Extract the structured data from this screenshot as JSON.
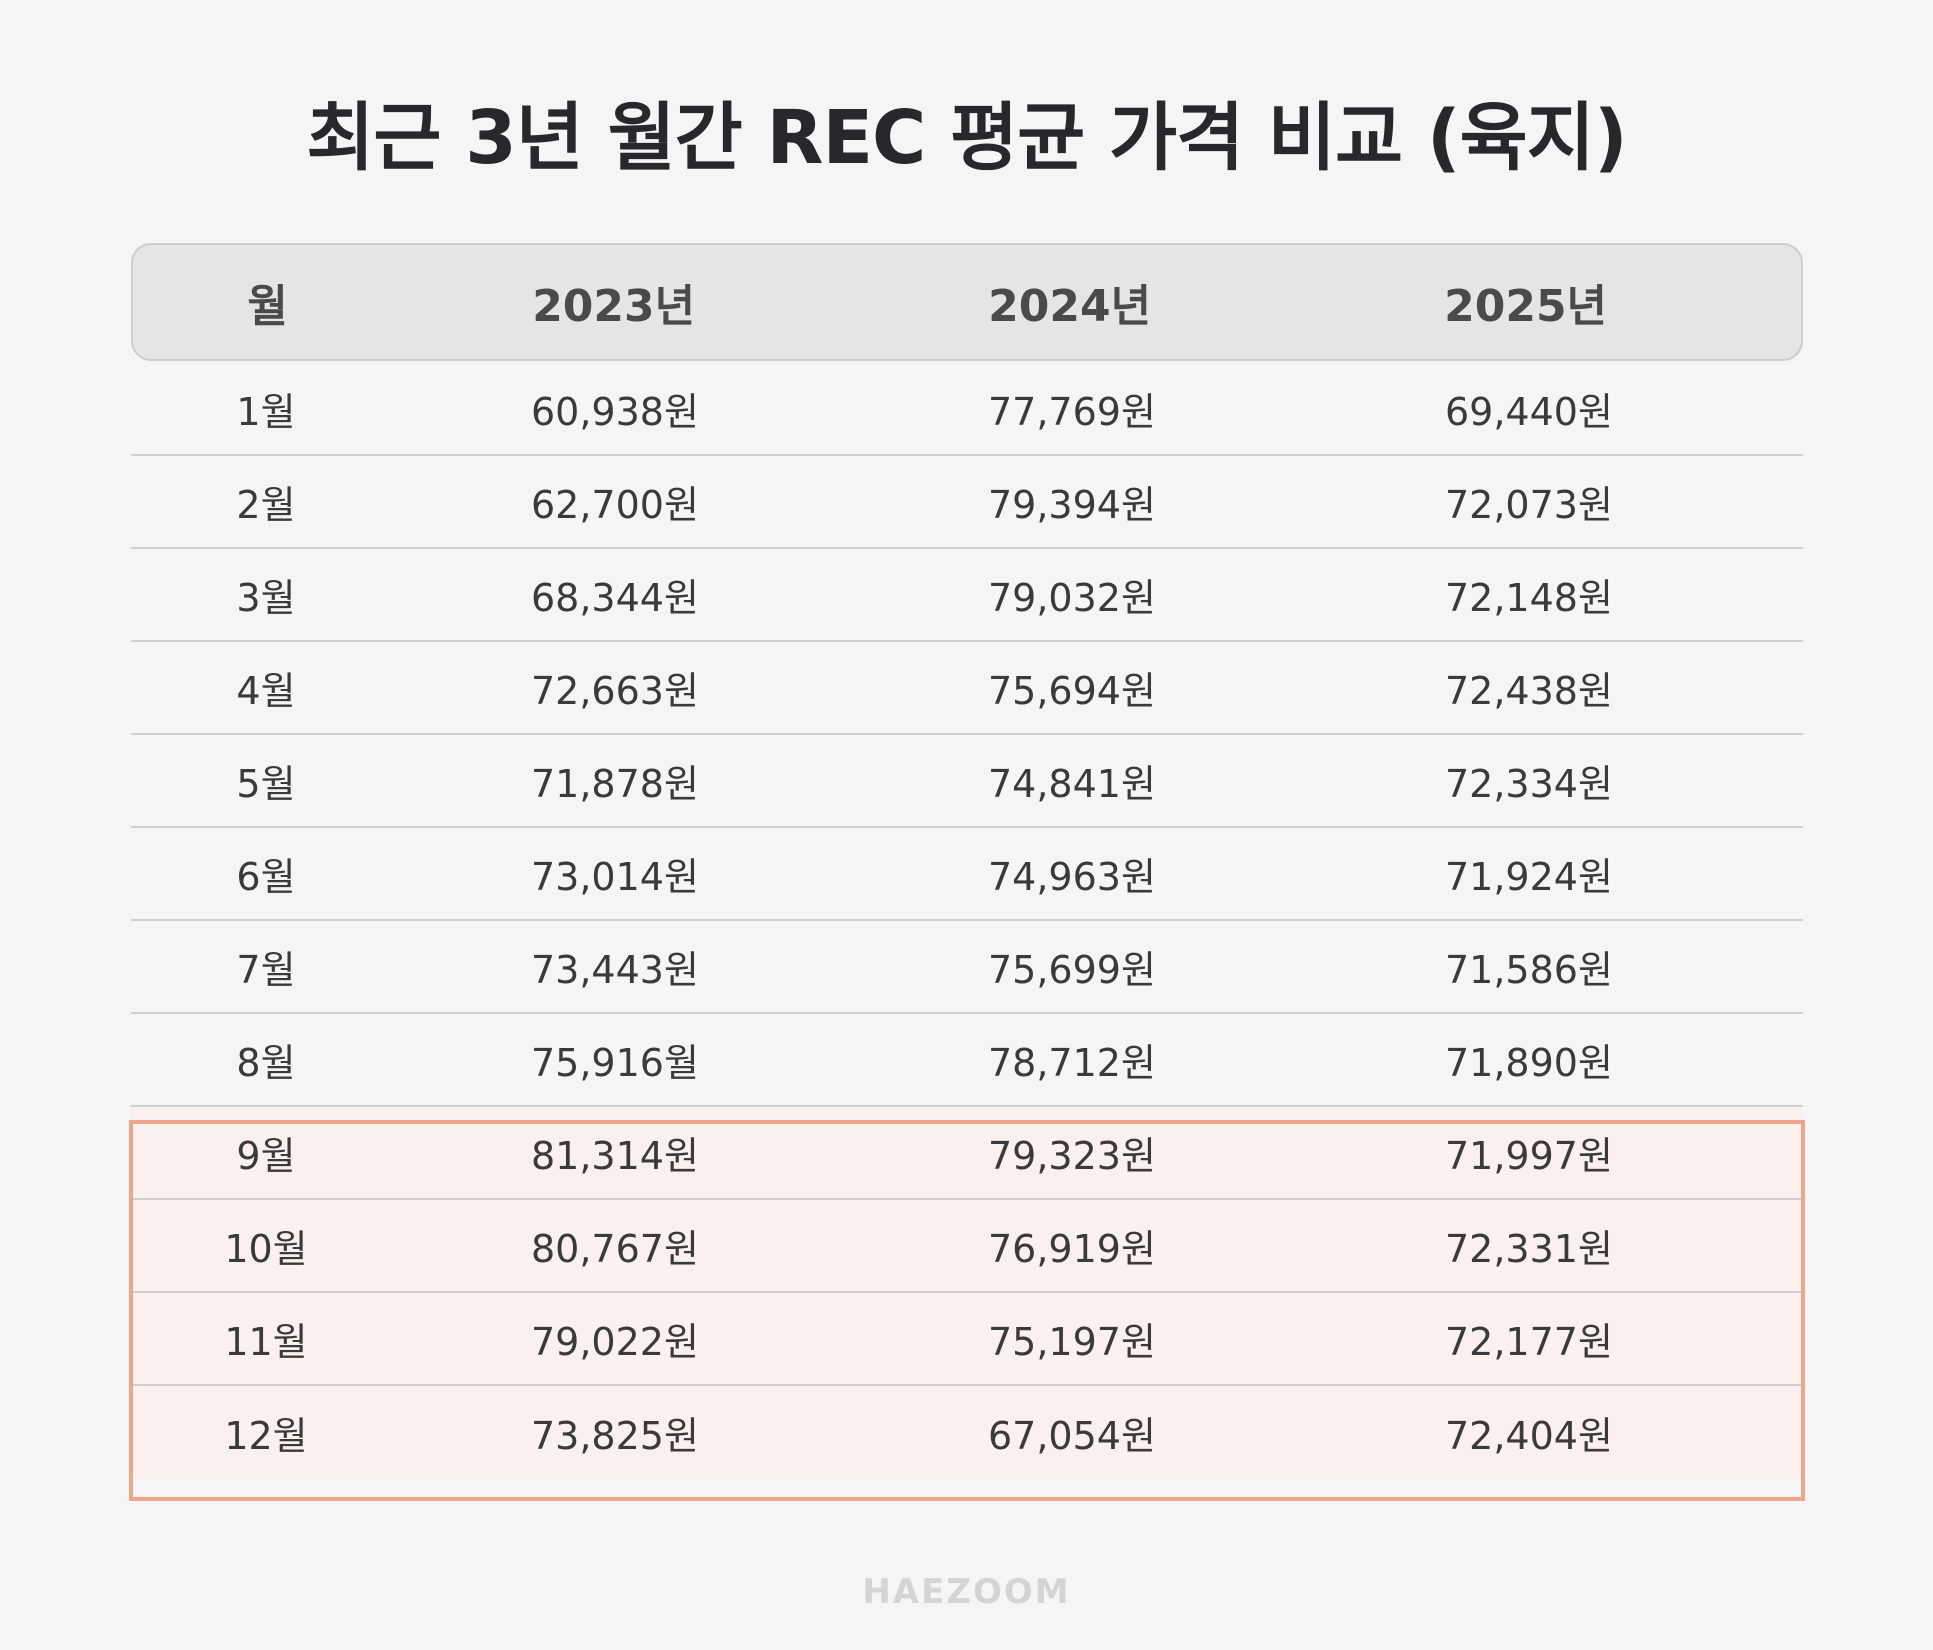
{
  "title": "최근 3년 월간 REC 평균 가격 비교 (육지)",
  "colors": {
    "background": "#f5f5f5",
    "header_bg": "#e5e5e5",
    "highlight_border": "#eea58b",
    "highlight_bg": "#faf0ee"
  },
  "table": {
    "headers": [
      "월",
      "2023년",
      "2024년",
      "2025년"
    ],
    "rows": [
      [
        "1월",
        "60,938원",
        "77,769원",
        "69,440원"
      ],
      [
        "2월",
        "62,700원",
        "79,394원",
        "72,073원"
      ],
      [
        "3월",
        "68,344원",
        "79,032원",
        "72,148원"
      ],
      [
        "4월",
        "72,663원",
        "75,694원",
        "72,438원"
      ],
      [
        "5월",
        "71,878원",
        "74,841원",
        "72,334원"
      ],
      [
        "6월",
        "73,014원",
        "74,963원",
        "71,924원"
      ],
      [
        "7월",
        "73,443원",
        "75,699원",
        "71,586원"
      ],
      [
        "8월",
        "75,916월",
        "78,712원",
        "71,890원"
      ],
      [
        "9월",
        "81,314원",
        "79,323원",
        "71,997원"
      ],
      [
        "10월",
        "80,767원",
        "76,919원",
        "72,331원"
      ],
      [
        "11월",
        "79,022원",
        "75,197원",
        "72,177원"
      ],
      [
        "12월",
        "73,825원",
        "67,054원",
        "72,404원"
      ]
    ],
    "highlighted_months": [
      "9월",
      "10월",
      "11월",
      "12월"
    ]
  },
  "watermark": "HAEZOOM"
}
